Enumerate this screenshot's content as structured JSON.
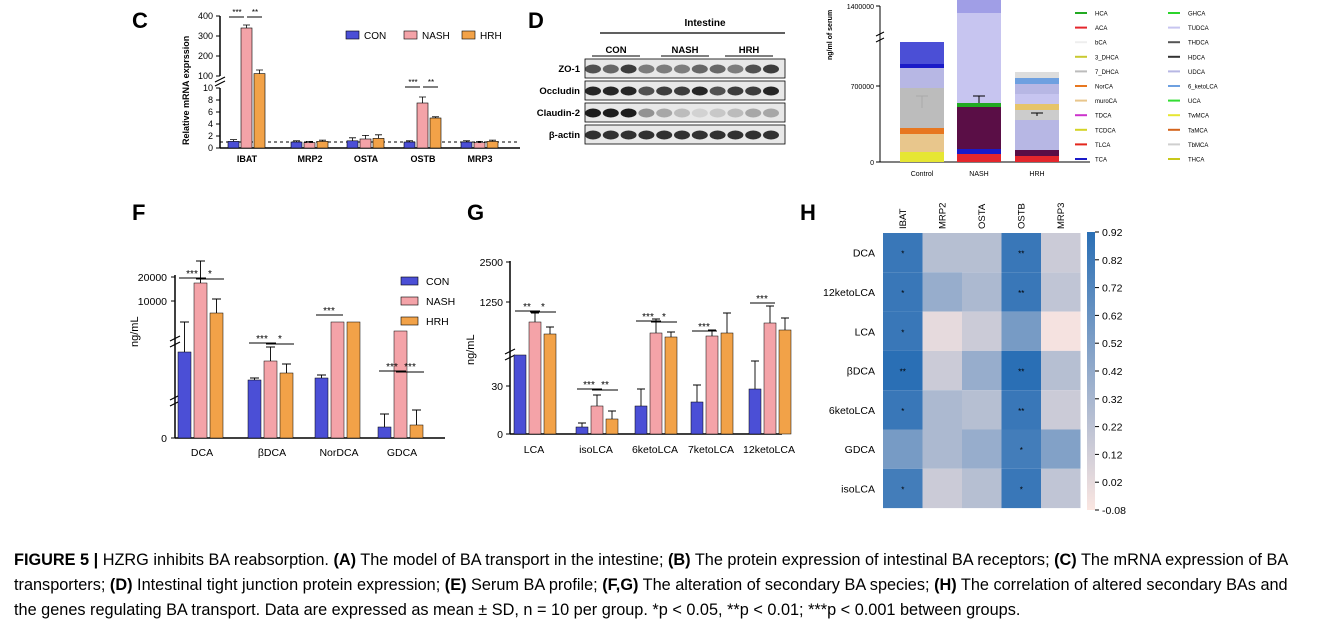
{
  "panel_labels": {
    "c": "C",
    "d": "D",
    "f": "F",
    "g": "G",
    "h": "H"
  },
  "colors": {
    "con": "#4b4fd6",
    "nash": "#f4a3a8",
    "hrh": "#f2a248",
    "hm_low": "#fbe6e1",
    "hm_high": "#2a6fb5"
  },
  "chart_data": [
    {
      "id": "C",
      "type": "bar",
      "ylabel": "Relative mRNA exprssion",
      "categories": [
        "IBAT",
        "MRP2",
        "OSTA",
        "OSTB",
        "MRP3"
      ],
      "series": [
        {
          "name": "CON",
          "values": [
            1.1,
            1.0,
            1.2,
            1.0,
            1.0
          ],
          "err": [
            0.3,
            0.2,
            0.5,
            0.2,
            0.2
          ]
        },
        {
          "name": "NASH",
          "values": [
            340,
            0.9,
            1.5,
            7.5,
            0.9
          ],
          "err": [
            15,
            0.2,
            0.6,
            1.0,
            0.2
          ]
        },
        {
          "name": "HRH",
          "values": [
            112,
            1.1,
            1.6,
            5.0,
            1.1
          ],
          "err": [
            18,
            0.2,
            0.6,
            0.2,
            0.2
          ]
        }
      ],
      "yticks_lower": [
        "0",
        "2",
        "4",
        "6",
        "8",
        "10"
      ],
      "yticks_upper": [
        "100",
        "200",
        "300",
        "400"
      ],
      "sig": [
        {
          "i": 0,
          "a": "***",
          "b": "**"
        },
        {
          "i": 3,
          "a": "***",
          "b": "**"
        }
      ],
      "legend": [
        "CON",
        "NASH",
        "HRH"
      ]
    },
    {
      "id": "E",
      "type": "bar",
      "ylabel": "ng/ml of serum",
      "categories": [
        "Control",
        "NASH",
        "HRH"
      ],
      "yticks": [
        "0",
        "700000",
        "1400000"
      ],
      "legend": [
        {
          "name": "HCA",
          "color": "#22aa22"
        },
        {
          "name": "GHCA",
          "color": "#2bd42b"
        },
        {
          "name": "ACA",
          "color": "#e4262c"
        },
        {
          "name": "TUDCA",
          "color": "#c7c5f0"
        },
        {
          "name": "bCA",
          "color": "#eeeeee"
        },
        {
          "name": "THDCA",
          "color": "#555555"
        },
        {
          "name": "3_DHCA",
          "color": "#c9c931"
        },
        {
          "name": "HDCA",
          "color": "#333333"
        },
        {
          "name": "7_DHCA",
          "color": "#bcbcbc"
        },
        {
          "name": "UDCA",
          "color": "#b7b7e4"
        },
        {
          "name": "NorCA",
          "color": "#e77720"
        },
        {
          "name": "6_ketoLCA",
          "color": "#6ea0e0"
        },
        {
          "name": "muroCA",
          "color": "#e8c68c"
        },
        {
          "name": "UCA",
          "color": "#33dd33"
        },
        {
          "name": "TDCA",
          "color": "#cc33cc"
        },
        {
          "name": "TwMCA",
          "color": "#e6e633"
        },
        {
          "name": "TCDCA",
          "color": "#d4d426"
        },
        {
          "name": "TaMCA",
          "color": "#d4641c"
        },
        {
          "name": "TLCA",
          "color": "#e3261c"
        },
        {
          "name": "TbMCA",
          "color": "#cfcfcf"
        },
        {
          "name": "TCA",
          "color": "#1a1ac8"
        },
        {
          "name": "THCA",
          "color": "#c8c81a"
        }
      ]
    },
    {
      "id": "F",
      "type": "bar",
      "ylabel": "ng/mL",
      "categories": [
        "DCA",
        "βDCA",
        "NorDCA",
        "GDCA"
      ],
      "yticks": [
        "0",
        "10000",
        "20000"
      ],
      "legend": [
        "CON",
        "NASH",
        "HRH"
      ],
      "sig": [
        {
          "i": 0,
          "a": "***",
          "b": "*"
        },
        {
          "i": 1,
          "a": "***",
          "b": "*"
        },
        {
          "i": 2,
          "a": "***",
          "b": ""
        },
        {
          "i": 3,
          "a": "***",
          "b": "***"
        }
      ]
    },
    {
      "id": "G",
      "type": "bar",
      "ylabel": "ng/mL",
      "categories": [
        "LCA",
        "isoLCA",
        "6ketoLCA",
        "7ketoLCA",
        "12ketoLCA"
      ],
      "series": [
        {
          "name": "CON",
          "values": [
            60,
            4,
            17,
            19,
            28
          ],
          "err": [
            0,
            2,
            11,
            12,
            16
          ]
        },
        {
          "name": "NASH",
          "values": [
            700,
            18,
            200,
            150,
            700
          ],
          "err": [
            200,
            6,
            200,
            80,
            350
          ]
        },
        {
          "name": "HRH",
          "values": [
            450,
            9,
            100,
            300,
            450
          ],
          "err": [
            150,
            5,
            80,
            400,
            300
          ]
        }
      ],
      "yticks": [
        "0",
        "30",
        "1250",
        "2500"
      ],
      "sig": [
        {
          "i": 0,
          "a": "**",
          "b": "*"
        },
        {
          "i": 1,
          "a": "***",
          "b": "**"
        },
        {
          "i": 2,
          "a": "***",
          "b": "*"
        },
        {
          "i": 3,
          "a": "***",
          "b": ""
        },
        {
          "i": 4,
          "a": "***",
          "b": ""
        }
      ]
    },
    {
      "id": "H",
      "type": "heatmap",
      "columns": [
        "IBAT",
        "MRP2",
        "OSTA",
        "OSTB",
        "MRP3"
      ],
      "rows": [
        "DCA",
        "12ketoLCA",
        "LCA",
        "βDCA",
        "6ketoLCA",
        "GDCA",
        "isoLCA"
      ],
      "values": [
        [
          0.85,
          0.25,
          0.25,
          0.85,
          0.15
        ],
        [
          0.85,
          0.4,
          0.3,
          0.85,
          0.2
        ],
        [
          0.85,
          0.02,
          0.15,
          0.55,
          -0.05
        ],
        [
          0.92,
          0.15,
          0.4,
          0.92,
          0.25
        ],
        [
          0.85,
          0.3,
          0.25,
          0.85,
          0.15
        ],
        [
          0.55,
          0.3,
          0.4,
          0.8,
          0.5
        ],
        [
          0.8,
          0.15,
          0.25,
          0.85,
          0.2
        ]
      ],
      "stars": [
        [
          "*",
          "",
          "",
          "**",
          ""
        ],
        [
          "*",
          "",
          "",
          "**",
          ""
        ],
        [
          "*",
          "",
          "",
          "",
          ""
        ],
        [
          "**",
          "",
          "",
          "**",
          ""
        ],
        [
          "*",
          "",
          "",
          "**",
          ""
        ],
        [
          "",
          "",
          "",
          "*",
          ""
        ],
        [
          "*",
          "",
          "",
          "*",
          ""
        ]
      ],
      "colorbar_ticks": [
        "0.92",
        "0.82",
        "0.72",
        "0.62",
        "0.52",
        "0.42",
        "0.32",
        "0.22",
        "0.12",
        "0.02",
        "-0.08"
      ]
    }
  ],
  "blot": {
    "title": "Intestine",
    "groups": [
      "CON",
      "NASH",
      "HRH"
    ],
    "rows": [
      "ZO-1",
      "Occludin",
      "Claudin-2",
      "β-actin"
    ]
  },
  "caption": {
    "figure_label": "FIGURE 5 |",
    "intro": " HZRG inhibits BA reabsorption. ",
    "parts": [
      {
        "k": "(A)",
        "t": " The model of BA transport in the intestine; "
      },
      {
        "k": "(B)",
        "t": " The protein expression of intestinal BA receptors; "
      },
      {
        "k": "(C)",
        "t": " The mRNA expression of BA transporters; "
      },
      {
        "k": "(D)",
        "t": " Intestinal tight junction protein expression; "
      },
      {
        "k": "(E)",
        "t": " Serum BA profile; "
      },
      {
        "k": "(F,G)",
        "t": " The alteration of secondary BA species; "
      },
      {
        "k": "(H)",
        "t": " The correlation of altered secondary BAs and the genes regulating BA transport. Data are expressed as mean ± SD, n = 10 per group. *p < 0.05, **p < 0.01; ***p < 0.001 between groups."
      }
    ]
  }
}
